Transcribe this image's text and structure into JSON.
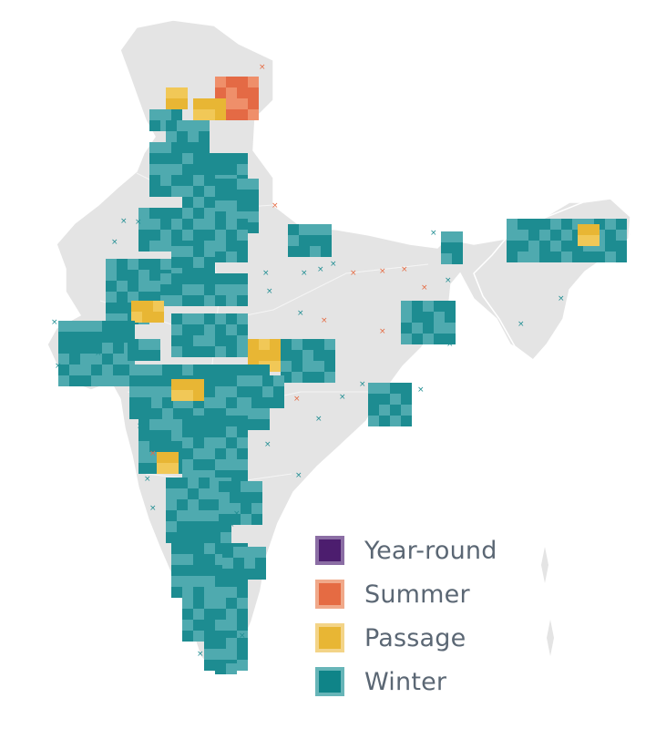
{
  "map": {
    "colors": {
      "land": "#e4e4e4",
      "border": "#ffffff",
      "cell_winter": "#4faaaf",
      "cell_winter_dark": "#1d8c91",
      "cell_passage": "#f1c857",
      "cell_passage_dark": "#e8b634",
      "cell_summer": "#ef8f6a",
      "cell_summer_dark": "#e46a45",
      "marker_teal": "#1f8d92",
      "marker_orange": "#e56b43"
    },
    "legend": [
      {
        "label": "Year-round",
        "fill": "#4c1d6e",
        "border": "#8b6ea4",
        "icon": "square-swatch"
      },
      {
        "label": "Summer",
        "fill": "#e56b43",
        "border": "#f0a98a",
        "icon": "square-swatch"
      },
      {
        "label": "Passage",
        "fill": "#e8b634",
        "border": "#f3d488",
        "icon": "square-swatch"
      },
      {
        "label": "Winter",
        "fill": "#0f8488",
        "border": "#67b5b8",
        "icon": "square-swatch"
      }
    ]
  }
}
